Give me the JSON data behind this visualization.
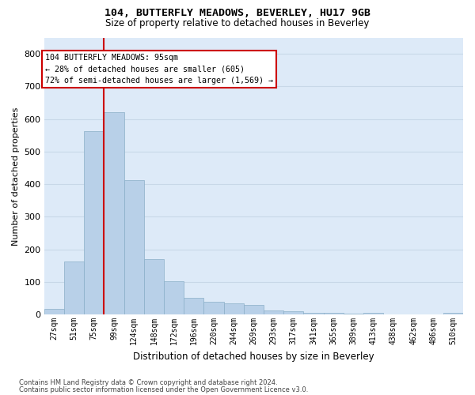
{
  "title1": "104, BUTTERFLY MEADOWS, BEVERLEY, HU17 9GB",
  "title2": "Size of property relative to detached houses in Beverley",
  "xlabel": "Distribution of detached houses by size in Beverley",
  "ylabel": "Number of detached properties",
  "footnote1": "Contains HM Land Registry data © Crown copyright and database right 2024.",
  "footnote2": "Contains public sector information licensed under the Open Government Licence v3.0.",
  "bar_labels": [
    "27sqm",
    "51sqm",
    "75sqm",
    "99sqm",
    "124sqm",
    "148sqm",
    "172sqm",
    "196sqm",
    "220sqm",
    "244sqm",
    "269sqm",
    "293sqm",
    "317sqm",
    "341sqm",
    "365sqm",
    "389sqm",
    "413sqm",
    "438sqm",
    "462sqm",
    "486sqm",
    "510sqm"
  ],
  "bar_values": [
    17,
    163,
    563,
    622,
    413,
    170,
    102,
    52,
    40,
    35,
    30,
    12,
    10,
    5,
    5,
    2,
    6,
    0,
    0,
    0,
    5
  ],
  "bar_color": "#b8d0e8",
  "bar_edge_color": "#8aafc8",
  "grid_color": "#c8d8e8",
  "background_color": "#ddeaf8",
  "red_line_index": 3,
  "red_line_color": "#cc0000",
  "annotation_line1": "104 BUTTERFLY MEADOWS: 95sqm",
  "annotation_line2": "← 28% of detached houses are smaller (605)",
  "annotation_line3": "72% of semi-detached houses are larger (1,569) →",
  "annotation_box_edgecolor": "#cc0000",
  "ylim": [
    0,
    850
  ],
  "yticks": [
    0,
    100,
    200,
    300,
    400,
    500,
    600,
    700,
    800
  ]
}
